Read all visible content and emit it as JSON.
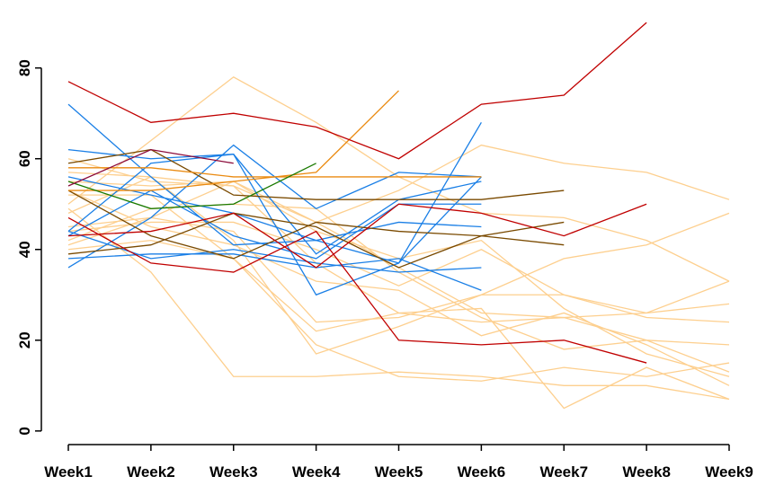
{
  "chart_data": {
    "type": "line",
    "categories": [
      "Week1",
      "Week2",
      "Week3",
      "Week4",
      "Week5",
      "Week6",
      "Week7",
      "Week8",
      "Week9"
    ],
    "ylim": [
      -3,
      93
    ],
    "yticks": [
      0,
      20,
      40,
      60,
      80
    ],
    "grid": false,
    "series": [
      {
        "color": "#fdcf8e",
        "values": [
          50,
          64,
          78,
          68,
          56,
          48,
          47,
          42,
          33
        ]
      },
      {
        "color": "#fdcf8e",
        "values": [
          60,
          55,
          54,
          46,
          53,
          63,
          59,
          57,
          51
        ]
      },
      {
        "color": "#fdcf8e",
        "values": [
          49,
          35,
          12,
          12,
          13,
          12,
          10,
          10,
          7
        ]
      },
      {
        "color": "#fdcf8e",
        "values": [
          41,
          47,
          44,
          24,
          25,
          30,
          30,
          26,
          33
        ]
      },
      {
        "color": "#fdcf8e",
        "values": [
          42,
          49,
          50,
          49,
          35,
          25,
          18,
          20,
          13
        ]
      },
      {
        "color": "#fdcf8e",
        "values": [
          45,
          47,
          55,
          46,
          36,
          26,
          25,
          20,
          19
        ]
      },
      {
        "color": "#fdcf8e",
        "values": [
          48,
          56,
          42,
          17,
          23,
          30,
          38,
          41,
          48
        ]
      },
      {
        "color": "#fdcf8e",
        "values": [
          52,
          52,
          38,
          19,
          12,
          11,
          14,
          12,
          15
        ]
      },
      {
        "color": "#fdcf8e",
        "values": [
          44,
          46,
          46,
          40,
          32,
          40,
          30,
          25,
          24
        ]
      },
      {
        "color": "#fdcf8e",
        "values": [
          40,
          42,
          38,
          22,
          26,
          27,
          5,
          14,
          7
        ]
      },
      {
        "color": "#fdcf8e",
        "values": [
          57,
          56,
          54,
          37,
          26,
          24,
          25,
          26,
          28
        ]
      },
      {
        "color": "#fdcf8e",
        "values": [
          53,
          45,
          41,
          33,
          31,
          21,
          26,
          19,
          10
        ]
      },
      {
        "color": "#fdcf8e",
        "values": [
          55,
          54,
          55,
          44,
          38,
          42,
          27,
          17,
          12
        ]
      },
      {
        "color": "#1a7fe6",
        "values": [
          72,
          56,
          41,
          42,
          37,
          56,
          null,
          null,
          null
        ]
      },
      {
        "color": "#1a7fe6",
        "values": [
          62,
          60,
          61,
          39,
          51,
          55,
          null,
          null,
          null
        ]
      },
      {
        "color": "#1a7fe6",
        "values": [
          36,
          47,
          63,
          49,
          57,
          56,
          null,
          null,
          null
        ]
      },
      {
        "color": "#1a7fe6",
        "values": [
          44,
          59,
          61,
          30,
          37,
          68,
          null,
          null,
          null
        ]
      },
      {
        "color": "#1a7fe6",
        "values": [
          44,
          38,
          40,
          37,
          35,
          36,
          null,
          null,
          null
        ]
      },
      {
        "color": "#1a7fe6",
        "values": [
          43,
          53,
          43,
          38,
          50,
          50,
          null,
          null,
          null
        ]
      },
      {
        "color": "#1a7fe6",
        "values": [
          38,
          39,
          39,
          36,
          38,
          31,
          null,
          null,
          null
        ]
      },
      {
        "color": "#1a7fe6",
        "values": [
          56,
          52,
          48,
          42,
          46,
          45,
          null,
          null,
          null
        ]
      },
      {
        "color": "#7a4a00",
        "values": [
          59,
          62,
          52,
          51,
          51,
          51,
          53,
          null,
          null
        ]
      },
      {
        "color": "#7a4a00",
        "values": [
          53,
          43,
          38,
          46,
          44,
          43,
          41,
          null,
          null
        ]
      },
      {
        "color": "#7a4a00",
        "values": [
          39,
          41,
          48,
          45,
          36,
          43,
          46,
          null,
          null
        ]
      },
      {
        "color": "#ea8a10",
        "values": [
          58,
          58,
          56,
          56,
          56,
          56,
          null,
          null,
          null
        ]
      },
      {
        "color": "#ea8a10",
        "values": [
          53,
          53,
          55,
          57,
          75,
          null,
          null,
          null,
          null
        ]
      },
      {
        "color": "#1a7a00",
        "values": [
          55,
          49,
          50,
          59,
          null,
          null,
          null,
          null,
          null
        ]
      },
      {
        "color": "#8b0a3a",
        "values": [
          54,
          62,
          59,
          null,
          null,
          null,
          null,
          null,
          null
        ]
      },
      {
        "color": "#c00000",
        "values": [
          77,
          68,
          70,
          67,
          60,
          72,
          74,
          90,
          null
        ]
      },
      {
        "color": "#c00000",
        "values": [
          47,
          37,
          35,
          44,
          20,
          19,
          20,
          15,
          null
        ]
      },
      {
        "color": "#c00000",
        "values": [
          43,
          44,
          48,
          36,
          50,
          48,
          43,
          50,
          null
        ]
      }
    ]
  }
}
